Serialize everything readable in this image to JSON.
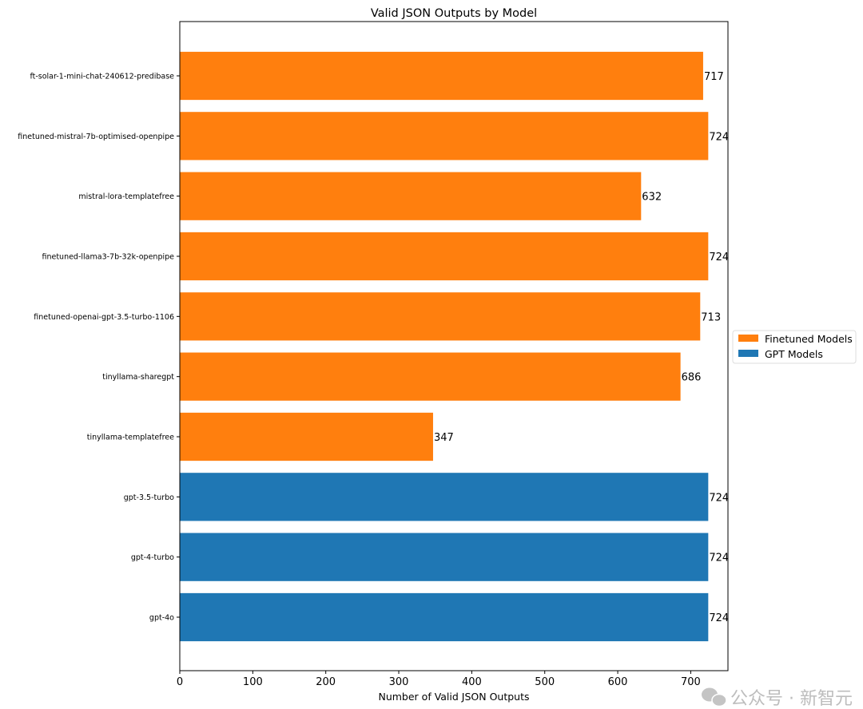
{
  "chart_data": {
    "type": "bar",
    "orientation": "horizontal",
    "title": "Valid JSON Outputs by Model",
    "xlabel": "Number of Valid JSON Outputs",
    "ylabel": "",
    "xlim": [
      0,
      751
    ],
    "xticks": [
      0,
      100,
      200,
      300,
      400,
      500,
      600,
      700
    ],
    "grid": false,
    "legend_position": "center-right outside",
    "categories": [
      "ft-solar-1-mini-chat-240612-predibase",
      "finetuned-mistral-7b-optimised-openpipe",
      "mistral-lora-templatefree",
      "finetuned-llama3-7b-32k-openpipe",
      "finetuned-openai-gpt-3.5-turbo-1106",
      "tinyllama-sharegpt",
      "tinyllama-templatefree",
      "gpt-3.5-turbo",
      "gpt-4-turbo",
      "gpt-4o"
    ],
    "values": [
      717,
      724,
      632,
      724,
      713,
      686,
      347,
      724,
      724,
      724
    ],
    "groups": [
      "finetuned",
      "finetuned",
      "finetuned",
      "finetuned",
      "finetuned",
      "finetuned",
      "finetuned",
      "gpt",
      "gpt",
      "gpt"
    ],
    "legend": [
      {
        "key": "finetuned",
        "label": "Finetuned Models",
        "color": "#ff7f0e"
      },
      {
        "key": "gpt",
        "label": "GPT Models",
        "color": "#1f77b4"
      }
    ]
  },
  "watermark": {
    "text": "公众号 · 新智元",
    "icon": "wechat-icon"
  }
}
